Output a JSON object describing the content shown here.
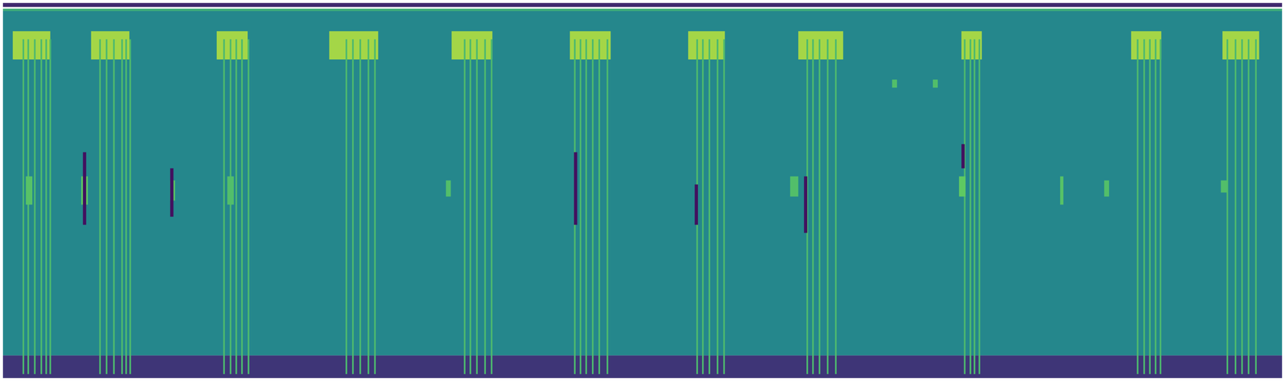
{
  "chart_data": {
    "type": "heatmap",
    "tick_labels": false,
    "xlim": [
      0,
      1568
    ],
    "ylim": [
      0,
      465
    ],
    "colorbar": {
      "range": [
        0,
        1
      ]
    },
    "cells": [
      [
        0,
        1568,
        28,
        457,
        0.46
      ],
      [
        0,
        1568,
        0,
        28,
        0.16
      ],
      [
        0,
        1568,
        460,
        465,
        0.12
      ],
      [
        0,
        1568,
        455,
        458,
        0.62
      ],
      [
        12,
        58,
        395,
        430,
        0.86
      ],
      [
        24,
        26,
        5,
        420,
        0.68
      ],
      [
        30,
        32,
        5,
        420,
        0.68
      ],
      [
        38,
        40,
        5,
        420,
        0.68
      ],
      [
        46,
        48,
        5,
        420,
        0.68
      ],
      [
        52,
        54,
        5,
        420,
        0.68
      ],
      [
        57,
        59,
        5,
        420,
        0.68
      ],
      [
        28,
        36,
        215,
        250,
        0.72
      ],
      [
        108,
        155,
        395,
        430,
        0.86
      ],
      [
        118,
        120,
        5,
        420,
        0.68
      ],
      [
        126,
        128,
        5,
        420,
        0.68
      ],
      [
        135,
        137,
        5,
        420,
        0.68
      ],
      [
        145,
        147,
        5,
        420,
        0.68
      ],
      [
        150,
        152,
        5,
        420,
        0.68
      ],
      [
        155,
        157,
        5,
        420,
        0.68
      ],
      [
        96,
        104,
        215,
        250,
        0.75
      ],
      [
        98,
        102,
        190,
        280,
        0.05
      ],
      [
        262,
        300,
        395,
        430,
        0.86
      ],
      [
        270,
        272,
        5,
        420,
        0.68
      ],
      [
        278,
        280,
        5,
        420,
        0.68
      ],
      [
        285,
        287,
        5,
        420,
        0.68
      ],
      [
        292,
        294,
        5,
        420,
        0.68
      ],
      [
        300,
        302,
        5,
        420,
        0.68
      ],
      [
        205,
        211,
        220,
        245,
        0.72
      ],
      [
        205,
        209,
        200,
        260,
        0.05
      ],
      [
        275,
        283,
        215,
        250,
        0.7
      ],
      [
        400,
        460,
        395,
        430,
        0.86
      ],
      [
        420,
        422,
        5,
        420,
        0.68
      ],
      [
        428,
        430,
        5,
        420,
        0.68
      ],
      [
        437,
        439,
        5,
        420,
        0.68
      ],
      [
        447,
        449,
        5,
        420,
        0.68
      ],
      [
        455,
        457,
        5,
        420,
        0.68
      ],
      [
        550,
        600,
        395,
        430,
        0.86
      ],
      [
        565,
        567,
        5,
        420,
        0.68
      ],
      [
        572,
        574,
        5,
        420,
        0.68
      ],
      [
        580,
        582,
        5,
        420,
        0.68
      ],
      [
        590,
        592,
        5,
        420,
        0.68
      ],
      [
        598,
        600,
        5,
        420,
        0.68
      ],
      [
        543,
        549,
        225,
        245,
        0.7
      ],
      [
        695,
        745,
        395,
        430,
        0.86
      ],
      [
        700,
        702,
        5,
        420,
        0.68
      ],
      [
        707,
        709,
        5,
        420,
        0.68
      ],
      [
        714,
        716,
        5,
        420,
        0.68
      ],
      [
        722,
        724,
        5,
        420,
        0.68
      ],
      [
        730,
        732,
        5,
        420,
        0.68
      ],
      [
        740,
        742,
        5,
        420,
        0.68
      ],
      [
        700,
        704,
        190,
        280,
        0.05
      ],
      [
        840,
        885,
        395,
        430,
        0.86
      ],
      [
        850,
        852,
        5,
        420,
        0.68
      ],
      [
        857,
        859,
        5,
        420,
        0.68
      ],
      [
        865,
        867,
        5,
        420,
        0.68
      ],
      [
        875,
        877,
        5,
        420,
        0.68
      ],
      [
        883,
        885,
        5,
        420,
        0.68
      ],
      [
        848,
        852,
        190,
        240,
        0.05
      ],
      [
        975,
        1030,
        395,
        430,
        0.86
      ],
      [
        985,
        987,
        5,
        420,
        0.68
      ],
      [
        992,
        994,
        5,
        420,
        0.68
      ],
      [
        1000,
        1002,
        5,
        420,
        0.68
      ],
      [
        1010,
        1012,
        5,
        420,
        0.68
      ],
      [
        1020,
        1022,
        5,
        420,
        0.68
      ],
      [
        965,
        975,
        225,
        250,
        0.7
      ],
      [
        982,
        986,
        180,
        250,
        0.05
      ],
      [
        1175,
        1200,
        395,
        430,
        0.86
      ],
      [
        1178,
        1180,
        5,
        420,
        0.68
      ],
      [
        1185,
        1187,
        5,
        420,
        0.68
      ],
      [
        1190,
        1192,
        5,
        420,
        0.68
      ],
      [
        1196,
        1198,
        5,
        420,
        0.68
      ],
      [
        1172,
        1180,
        225,
        250,
        0.75
      ],
      [
        1175,
        1179,
        260,
        290,
        0.05
      ],
      [
        1383,
        1420,
        395,
        430,
        0.86
      ],
      [
        1390,
        1392,
        5,
        420,
        0.68
      ],
      [
        1398,
        1400,
        5,
        420,
        0.68
      ],
      [
        1405,
        1407,
        5,
        420,
        0.68
      ],
      [
        1412,
        1414,
        5,
        420,
        0.68
      ],
      [
        1418,
        1420,
        5,
        420,
        0.68
      ],
      [
        1495,
        1540,
        395,
        430,
        0.86
      ],
      [
        1500,
        1502,
        5,
        420,
        0.68
      ],
      [
        1510,
        1512,
        5,
        420,
        0.68
      ],
      [
        1518,
        1520,
        5,
        420,
        0.68
      ],
      [
        1526,
        1528,
        5,
        420,
        0.68
      ],
      [
        1535,
        1537,
        5,
        420,
        0.68
      ],
      [
        1493,
        1501,
        230,
        245,
        0.7
      ],
      [
        1090,
        1096,
        360,
        370,
        0.7
      ],
      [
        1140,
        1146,
        360,
        370,
        0.7
      ],
      [
        1296,
        1300,
        215,
        250,
        0.72
      ],
      [
        1350,
        1356,
        225,
        245,
        0.7
      ]
    ]
  }
}
